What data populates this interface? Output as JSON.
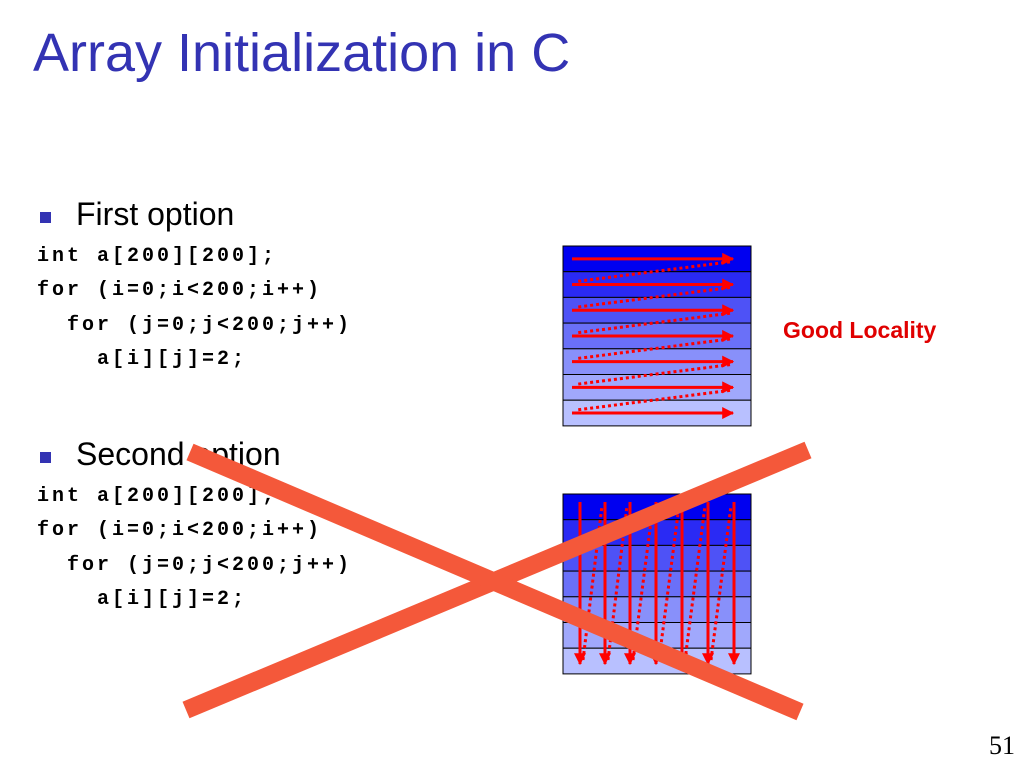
{
  "title": "Array Initialization in C",
  "sections": [
    {
      "bullet": "First option",
      "code": [
        "int a[200][200];",
        "for (i=0;i<200;i++)",
        "  for (j=0;j<200;j++)",
        "    a[i][j]=2;"
      ]
    },
    {
      "bullet": "Second option",
      "code": [
        "int a[200][200];",
        "for (i=0;i<200;i++)",
        "  for (j=0;j<200;j++)",
        "    a[i][j]=2;"
      ]
    }
  ],
  "annotation": "Good Locality",
  "page_number": "51"
}
